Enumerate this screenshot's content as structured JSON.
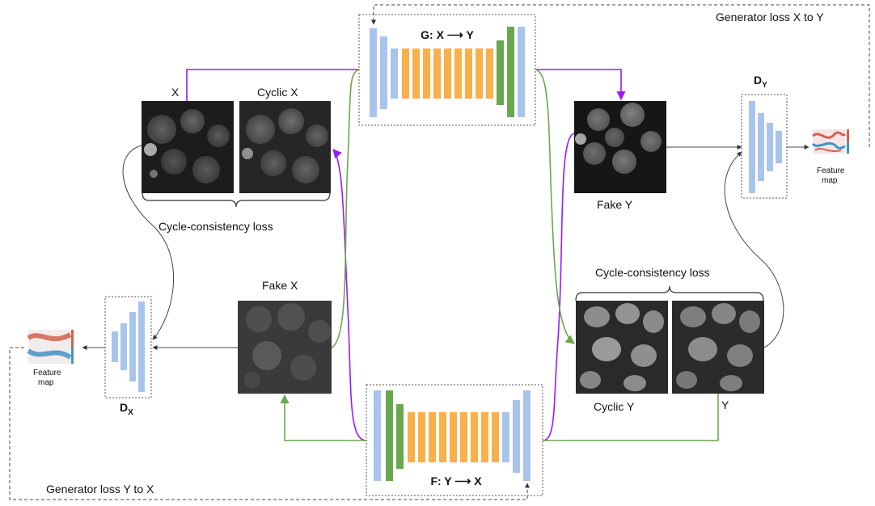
{
  "generator_g": {
    "title": "G: X ⟶ Y"
  },
  "generator_f": {
    "title": "F: Y ⟶ X"
  },
  "discriminator_y": {
    "label_main": "D",
    "label_sub": "Y"
  },
  "discriminator_x": {
    "label_main": "D",
    "label_sub": "X"
  },
  "images": {
    "x": "X",
    "cyclic_x": "Cyclic X",
    "fake_y": "Fake Y",
    "fake_x": "Fake X",
    "cyclic_y": "Cyclic Y",
    "y": "Y"
  },
  "losses": {
    "cycle_left": "Cycle-consistency  loss",
    "cycle_right": "Cycle-consistency  loss",
    "gen_xy": "Generator loss X to Y",
    "gen_yx": "Generator loss Y to X"
  },
  "feature_map": {
    "line1": "Feature",
    "line2": "map"
  },
  "colors": {
    "layer_blue": "#a9c4ec",
    "layer_orange": "#f9b04a",
    "layer_green": "#6aa84f",
    "arrow_purple": "#9a1aff",
    "arrow_green": "#6aa84f",
    "heat_red": "#d6604d",
    "heat_blue": "#4393c3"
  }
}
